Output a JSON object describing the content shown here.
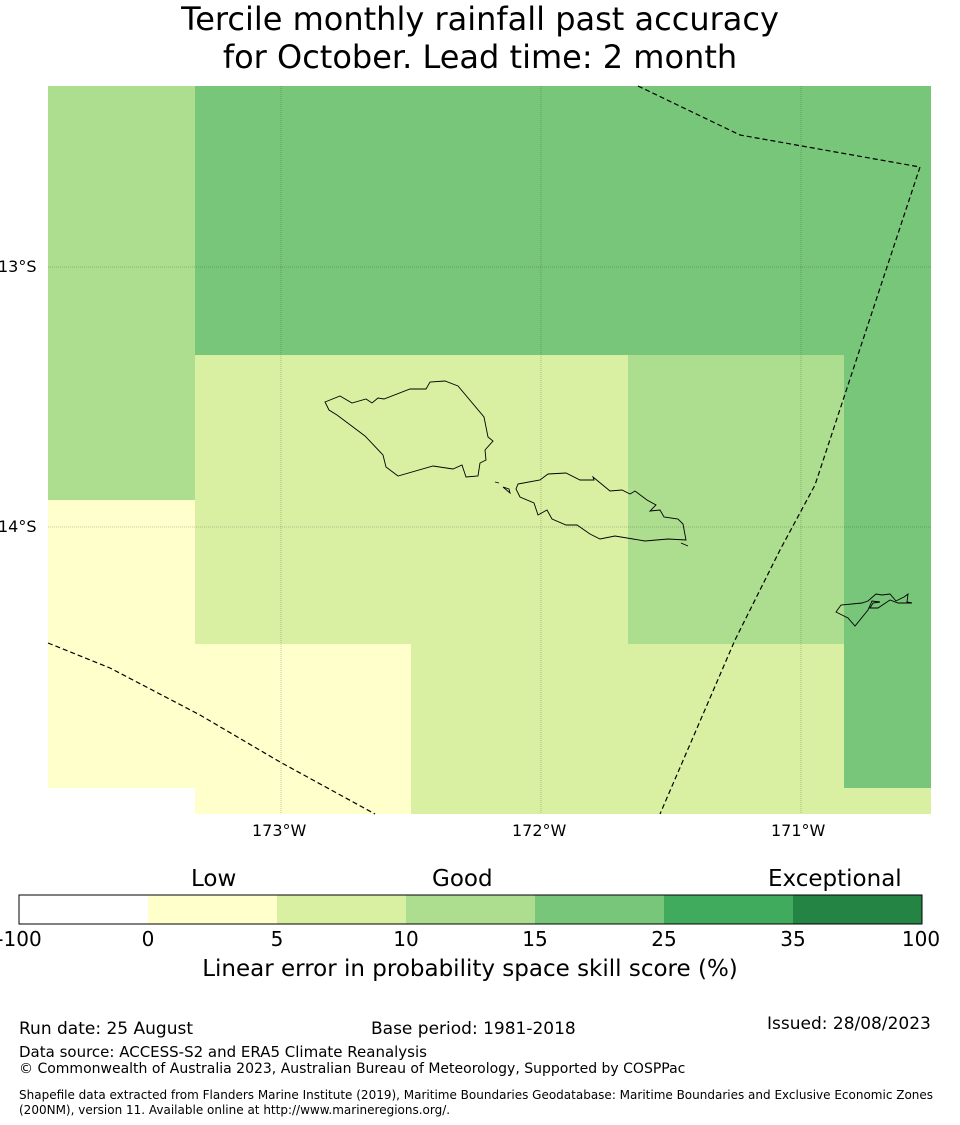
{
  "title": {
    "line1": "Tercile monthly rainfall past accuracy",
    "line2": "for October. Lead time: 2 month"
  },
  "map": {
    "lat_labels": [
      "13°S",
      "14°S"
    ],
    "lon_labels": [
      "173°W",
      "172°W",
      "171°W"
    ],
    "colors": {
      "c0_5": "#ffffcc",
      "c5_10": "#d9f0a3",
      "c10_15": "#addd8e",
      "c15_25": "#78c679",
      "grid": "#333333",
      "coast": "#000000"
    },
    "islands": [
      "Savai'i",
      "Upolu",
      "Tutuila"
    ]
  },
  "colorbar": {
    "category_labels": [
      "Low",
      "Good",
      "Exceptional"
    ],
    "ticks": [
      "-100",
      "0",
      "5",
      "10",
      "15",
      "25",
      "35",
      "100"
    ],
    "colors": [
      "#ffffff",
      "#ffffcc",
      "#d9f0a3",
      "#addd8e",
      "#78c679",
      "#41ab5d",
      "#238443"
    ],
    "label": "Linear error in probability space skill score (%)"
  },
  "footer": {
    "run_date": "Run date: 25 August",
    "base_period": "Base period: 1981-2018",
    "issued": "Issued: 28/08/2023",
    "data_source": "Data source: ACCESS-S2 and ERA5 Climate Reanalysis",
    "copyright": "© Commonwealth of Australia 2023, Australian Bureau of Meteorology, Supported by COSPPac",
    "shapefile": "Shapefile data extracted from Flanders Marine Institute (2019), Maritime Boundaries Geodatabase: Maritime Boundaries and Exclusive Economic Zones (200NM), version 11. Available online at http://www.marineregions.org/."
  }
}
